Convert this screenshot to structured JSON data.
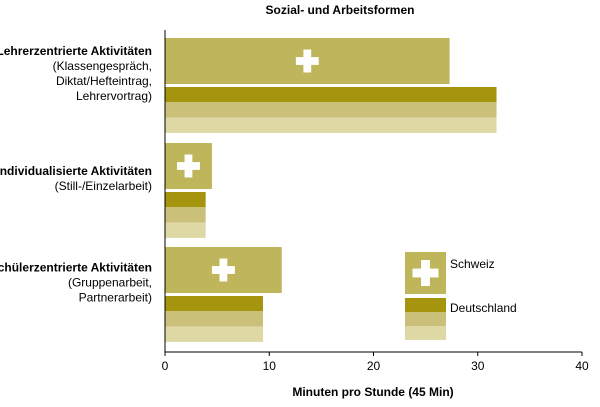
{
  "chart_data": {
    "type": "bar",
    "orientation": "horizontal",
    "title": "Sozial- und Arbeitsformen",
    "xlabel": "Minuten pro Stunde (45 Min)",
    "ylabel": "",
    "xlim": [
      0,
      40
    ],
    "xticks": [
      0,
      10,
      20,
      30,
      40
    ],
    "grid": false,
    "legend_position": "right",
    "categories": [
      {
        "name": "Lehrerzentrierte Aktivitäten",
        "sub": [
          "(Klassengespräch,",
          "Diktat/Hefteintrag,",
          "Lehrervortrag)"
        ]
      },
      {
        "name": "Individualisierte Aktivitäten",
        "sub": [
          "(Still-/Einzelarbeit)"
        ]
      },
      {
        "name": "Schülerzentrierte Aktivitäten",
        "sub": [
          "(Gruppenarbeit,",
          "Partnerarbeit)"
        ]
      }
    ],
    "series": [
      {
        "name": "Schweiz",
        "values": [
          27.3,
          4.5,
          11.2
        ],
        "color": "#bfb55a",
        "icon": "swiss-cross-icon"
      },
      {
        "name": "Deutschland",
        "values": [
          31.8,
          3.9,
          9.4
        ],
        "colors": [
          "#a5940e",
          "#cbc07a",
          "#ded8a4"
        ]
      }
    ]
  }
}
